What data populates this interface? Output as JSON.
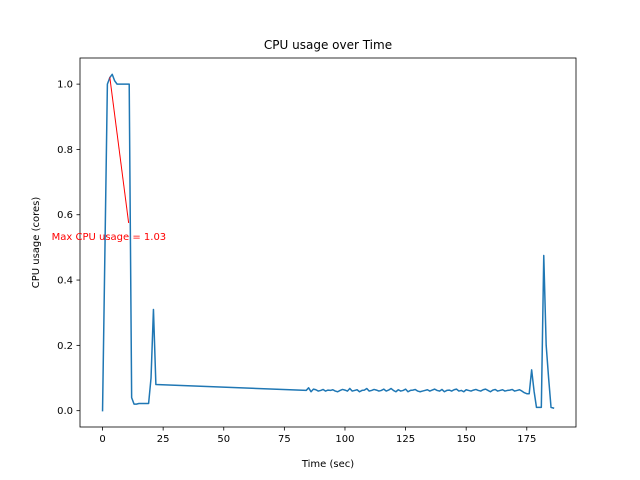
{
  "chart_data": {
    "type": "line",
    "title": "CPU usage over Time",
    "xlabel": "Time (sec)",
    "ylabel": "CPU usage (cores)",
    "xlim": [
      -9.3,
      195.3
    ],
    "ylim": [
      -0.05,
      1.08
    ],
    "xticks": [
      0,
      25,
      50,
      75,
      100,
      125,
      150,
      175
    ],
    "yticks": [
      0.0,
      0.2,
      0.4,
      0.6,
      0.8,
      1.0
    ],
    "xtick_labels": [
      "0",
      "25",
      "50",
      "75",
      "100",
      "125",
      "150",
      "175"
    ],
    "ytick_labels": [
      "0.0",
      "0.2",
      "0.4",
      "0.6",
      "0.8",
      "1.0"
    ],
    "grid": false,
    "line_color": "#1f77b4",
    "series": [
      {
        "x": [
          0,
          1,
          2,
          3,
          4,
          5,
          6,
          7,
          8,
          9,
          10,
          11,
          12,
          13,
          14,
          15,
          16,
          17,
          18,
          19,
          20,
          21,
          22,
          84,
          85,
          86,
          87,
          88,
          89,
          90,
          91,
          92,
          93,
          94,
          95,
          96,
          97,
          98,
          99,
          100,
          101,
          102,
          103,
          104,
          105,
          106,
          107,
          108,
          109,
          110,
          111,
          112,
          113,
          114,
          115,
          116,
          117,
          118,
          119,
          120,
          121,
          122,
          123,
          124,
          125,
          126,
          127,
          128,
          129,
          130,
          131,
          132,
          133,
          134,
          135,
          136,
          137,
          138,
          139,
          140,
          141,
          142,
          143,
          144,
          145,
          146,
          147,
          148,
          149,
          150,
          151,
          152,
          153,
          154,
          155,
          156,
          157,
          158,
          159,
          160,
          161,
          162,
          163,
          164,
          165,
          166,
          167,
          168,
          169,
          170,
          171,
          172,
          173,
          174,
          175,
          176,
          177,
          178,
          179,
          180,
          181,
          182,
          183,
          184,
          185,
          186
        ],
        "y": [
          0.0,
          0.5,
          1.0,
          1.02,
          1.03,
          1.01,
          1.0,
          1.0,
          1.0,
          1.0,
          1.0,
          1.0,
          0.04,
          0.02,
          0.02,
          0.022,
          0.022,
          0.022,
          0.022,
          0.022,
          0.1,
          0.31,
          0.08,
          0.062,
          0.07,
          0.058,
          0.066,
          0.064,
          0.06,
          0.062,
          0.065,
          0.06,
          0.063,
          0.062,
          0.064,
          0.06,
          0.058,
          0.062,
          0.065,
          0.063,
          0.06,
          0.068,
          0.06,
          0.062,
          0.064,
          0.058,
          0.062,
          0.063,
          0.068,
          0.06,
          0.062,
          0.065,
          0.063,
          0.06,
          0.062,
          0.066,
          0.06,
          0.063,
          0.068,
          0.062,
          0.058,
          0.064,
          0.06,
          0.062,
          0.066,
          0.058,
          0.062,
          0.063,
          0.065,
          0.06,
          0.058,
          0.06,
          0.062,
          0.064,
          0.06,
          0.063,
          0.066,
          0.062,
          0.06,
          0.065,
          0.058,
          0.062,
          0.063,
          0.06,
          0.064,
          0.066,
          0.06,
          0.062,
          0.058,
          0.064,
          0.062,
          0.06,
          0.063,
          0.065,
          0.062,
          0.06,
          0.064,
          0.066,
          0.062,
          0.058,
          0.063,
          0.065,
          0.06,
          0.062,
          0.064,
          0.06,
          0.062,
          0.063,
          0.065,
          0.06,
          0.062,
          0.064,
          0.06,
          0.055,
          0.052,
          0.052,
          0.125,
          0.06,
          0.01,
          0.01,
          0.01,
          0.475,
          0.2,
          0.1,
          0.01,
          0.008
        ]
      }
    ],
    "annotation": {
      "text": "Max CPU usage = 1.03",
      "color": "#ff0000",
      "xy": [
        3,
        1.03
      ],
      "xytext": [
        -21,
        0.535
      ]
    }
  }
}
